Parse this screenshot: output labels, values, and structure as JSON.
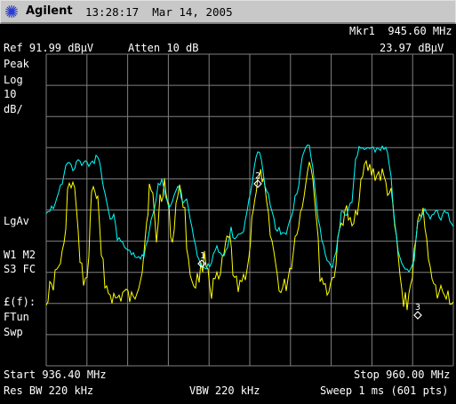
{
  "header": {
    "brand": "Agilent",
    "time": "13:28:17",
    "date": "Mar 14, 2005"
  },
  "marker_readout": {
    "label": "Mkr1",
    "frequency": "945.60 MHz",
    "amplitude": "23.97 dBµV"
  },
  "settings": {
    "ref": "Ref 91.99 dBµV",
    "atten": "Atten 10 dB"
  },
  "left_panel": {
    "peak": "Peak",
    "log": "Log",
    "scale_value": "10",
    "scale_unit": "dB/",
    "lgav": "LgAv",
    "w1m2": "W1  M2",
    "s3fc": "S3  FC",
    "ef": "£(f):",
    "ftun": "FTun",
    "swp": "Swp"
  },
  "footer": {
    "start": "Start 936.40 MHz",
    "stop": "Stop 960.00 MHz",
    "res_bw": "Res BW 220 kHz",
    "vbw": "VBW 220 kHz",
    "sweep": "Sweep 1 ms (601 pts)"
  },
  "markers": [
    {
      "label": "1"
    },
    {
      "label": "2"
    },
    {
      "label": "3"
    }
  ],
  "colors": {
    "background": "#000000",
    "grid": "#808080",
    "trace_avg": "#ffff00",
    "trace_peak": "#00ffff",
    "titlebar": "#c8c8c8"
  }
}
